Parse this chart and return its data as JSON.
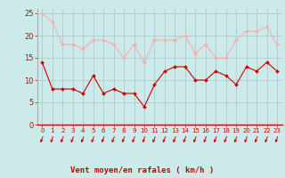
{
  "x": [
    0,
    1,
    2,
    3,
    4,
    5,
    6,
    7,
    8,
    9,
    10,
    11,
    12,
    13,
    14,
    15,
    16,
    17,
    18,
    19,
    20,
    21,
    22,
    23
  ],
  "wind_avg": [
    14,
    8,
    8,
    8,
    7,
    11,
    7,
    8,
    7,
    7,
    4,
    9,
    12,
    13,
    13,
    10,
    10,
    12,
    11,
    9,
    13,
    12,
    14,
    12
  ],
  "wind_gust": [
    25,
    23,
    18,
    18,
    17,
    19,
    19,
    18,
    15,
    18,
    14,
    19,
    19,
    19,
    20,
    16,
    18,
    15,
    15,
    19,
    21,
    21,
    22,
    18
  ],
  "bg_color": "#cceaea",
  "grid_color": "#aacccc",
  "avg_color": "#cc0000",
  "gust_color": "#ffaaaa",
  "xlabel": "Vent moyen/en rafales ( km/h )",
  "xlabel_color": "#cc0000",
  "tick_color": "#cc0000",
  "ylim": [
    0,
    26
  ],
  "yticks": [
    0,
    5,
    10,
    15,
    20,
    25
  ],
  "marker": "D",
  "marker_size": 2.0,
  "line_width": 0.8
}
